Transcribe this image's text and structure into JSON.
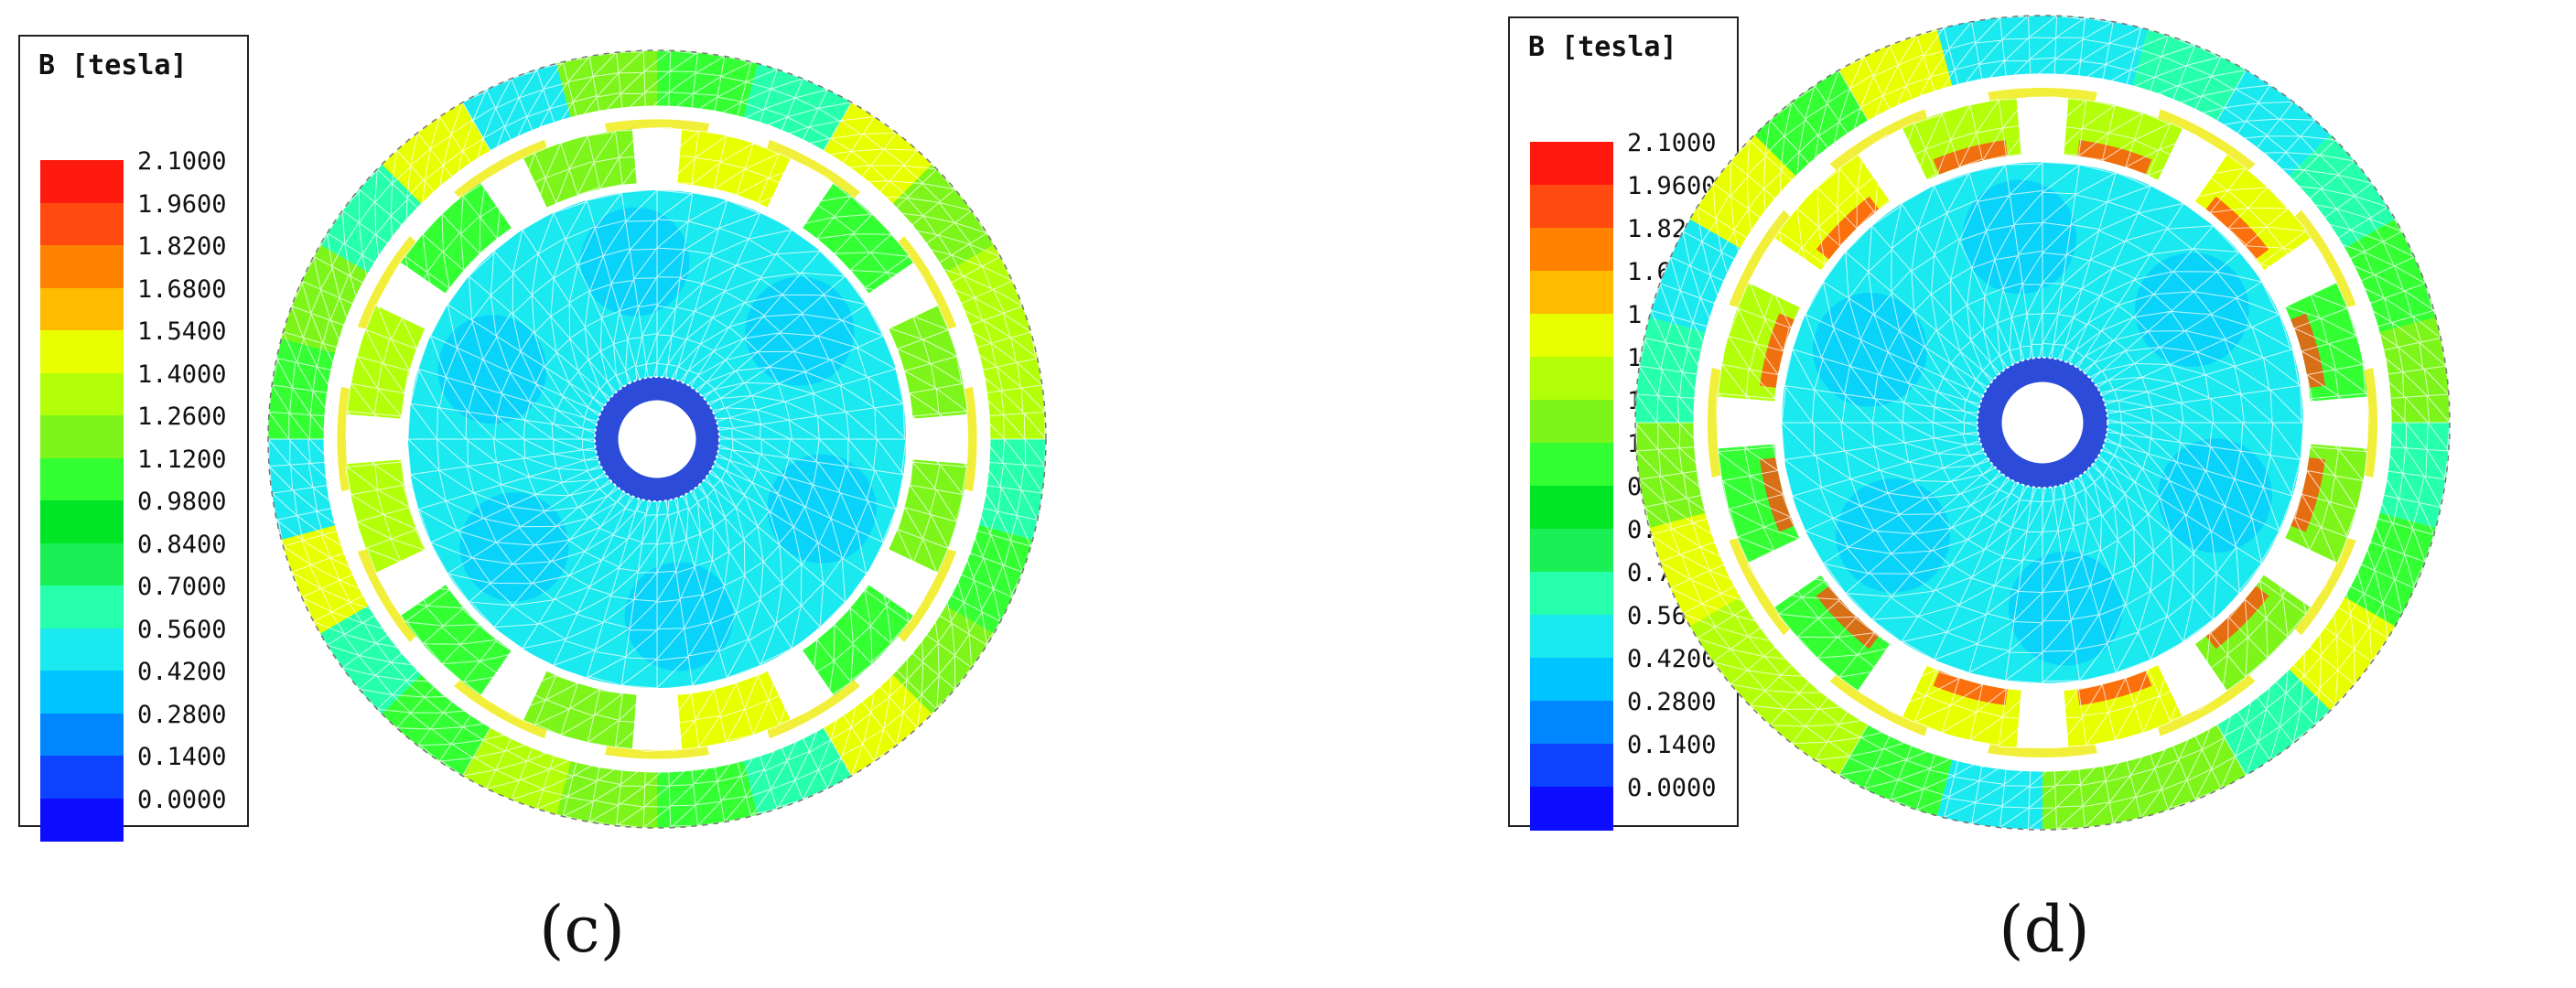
{
  "legend": {
    "title": "B [tesla]",
    "levels": [
      {
        "value": "2.1000",
        "color": "#ff1a10"
      },
      {
        "value": "1.9600",
        "color": "#ff4b0f"
      },
      {
        "value": "1.8200",
        "color": "#ff8300"
      },
      {
        "value": "1.6800",
        "color": "#ffbb00"
      },
      {
        "value": "1.5400",
        "color": "#e8ff00"
      },
      {
        "value": "1.4000",
        "color": "#b3ff0a"
      },
      {
        "value": "1.2600",
        "color": "#7df51b"
      },
      {
        "value": "1.1200",
        "color": "#33ff33"
      },
      {
        "value": "0.9800",
        "color": "#00e626"
      },
      {
        "value": "0.8400",
        "color": "#1aef55"
      },
      {
        "value": "0.7000",
        "color": "#26ffab"
      },
      {
        "value": "0.5600",
        "color": "#1ae9f0"
      },
      {
        "value": "0.4200",
        "color": "#00c4ff"
      },
      {
        "value": "0.2800",
        "color": "#0087ff"
      },
      {
        "value": "0.1400",
        "color": "#0d42ff"
      },
      {
        "value": "0.0000",
        "color": "#0d0dff"
      }
    ]
  },
  "panels": [
    {
      "id": "c",
      "caption": "(c)"
    },
    {
      "id": "d",
      "caption": "(d)"
    }
  ]
}
